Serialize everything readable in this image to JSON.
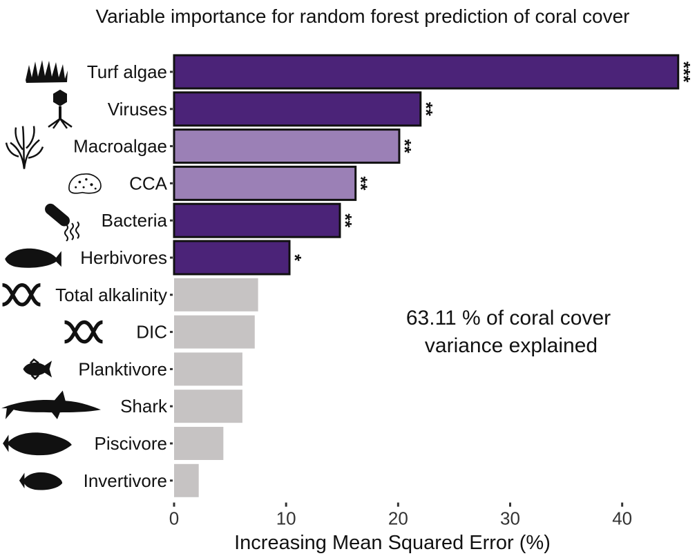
{
  "chart_data": {
    "type": "bar",
    "orientation": "horizontal",
    "title": "Variable importance for random forest prediction of coral cover",
    "xlabel": "Increasing Mean Squared Error (%)",
    "ylabel": "",
    "xlim": [
      0,
      45.2
    ],
    "xticks": [
      0,
      10,
      20,
      30,
      40
    ],
    "grid": false,
    "annotation": {
      "line1": "63.11 % of coral cover",
      "line2": "variance explained"
    },
    "colors": {
      "dark": "#4b2378",
      "light": "#9b80b6",
      "grey": "#c6c3c3",
      "outline": "#111111"
    },
    "bars": [
      {
        "category": "Turf algae",
        "value": 45.0,
        "significance": "***",
        "color": "dark",
        "icon": "turf-algae-icon"
      },
      {
        "category": "Viruses",
        "value": 22.0,
        "significance": "**",
        "color": "dark",
        "icon": "virus-icon"
      },
      {
        "category": "Macroalgae",
        "value": 20.1,
        "significance": "**",
        "color": "light",
        "icon": "macroalgae-icon"
      },
      {
        "category": "CCA",
        "value": 16.2,
        "significance": "**",
        "color": "light",
        "icon": "cca-icon"
      },
      {
        "category": "Bacteria",
        "value": 14.8,
        "significance": "**",
        "color": "dark",
        "icon": "bacteria-icon"
      },
      {
        "category": "Herbivores",
        "value": 10.3,
        "significance": "*",
        "color": "dark",
        "icon": "herbivore-fish-icon"
      },
      {
        "category": "Total alkalinity",
        "value": 7.5,
        "significance": "",
        "color": "grey",
        "icon": "helix-icon"
      },
      {
        "category": "DIC",
        "value": 7.2,
        "significance": "",
        "color": "grey",
        "icon": "helix-icon"
      },
      {
        "category": "Planktivore",
        "value": 6.1,
        "significance": "",
        "color": "grey",
        "icon": "planktivore-fish-icon"
      },
      {
        "category": "Shark",
        "value": 6.1,
        "significance": "",
        "color": "grey",
        "icon": "shark-icon"
      },
      {
        "category": "Piscivore",
        "value": 4.4,
        "significance": "",
        "color": "grey",
        "icon": "piscivore-fish-icon"
      },
      {
        "category": "Invertivore",
        "value": 2.2,
        "significance": "",
        "color": "grey",
        "icon": "invertivore-fish-icon"
      }
    ]
  }
}
